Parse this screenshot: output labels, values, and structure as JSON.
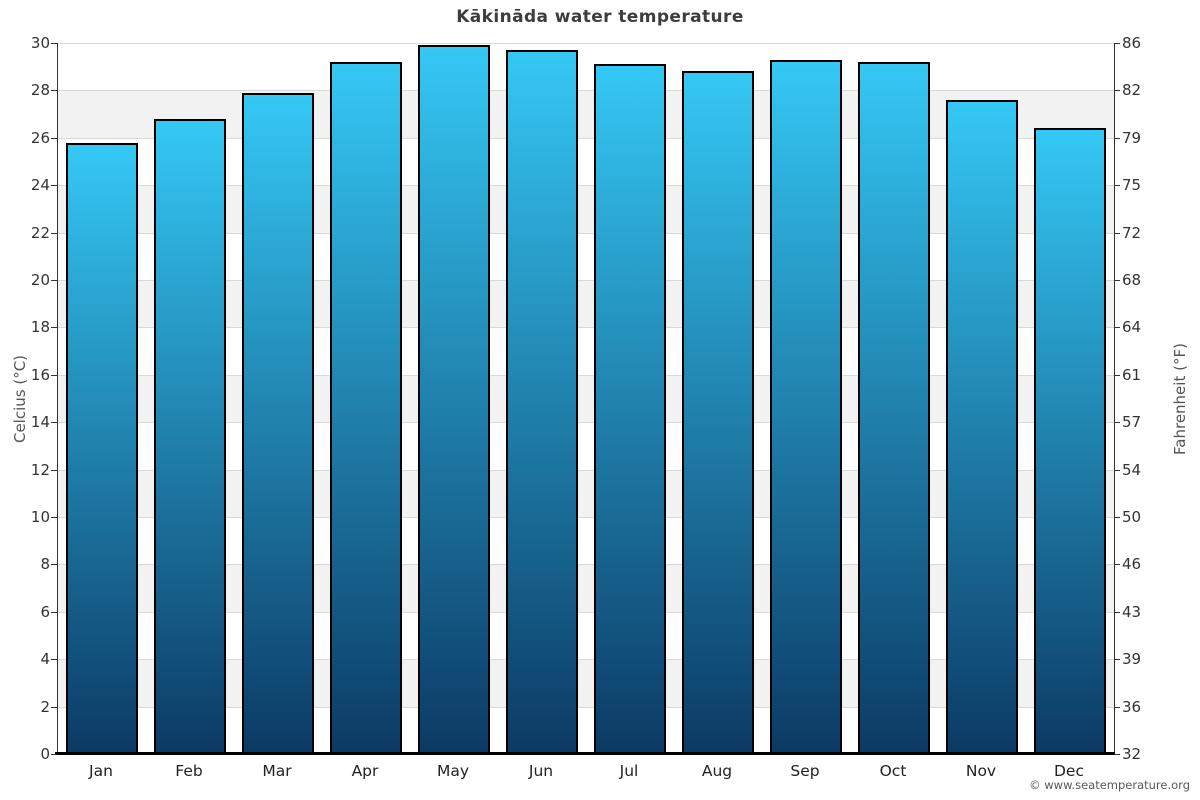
{
  "title": "Kākināda water temperature",
  "footer": "© www.seatemperature.org",
  "chart_data": {
    "type": "bar",
    "title": "Kākināda water temperature",
    "categories": [
      "Jan",
      "Feb",
      "Mar",
      "Apr",
      "May",
      "Jun",
      "Jul",
      "Aug",
      "Sep",
      "Oct",
      "Nov",
      "Dec"
    ],
    "values": [
      25.8,
      26.8,
      27.9,
      29.2,
      29.9,
      29.7,
      29.1,
      28.8,
      29.3,
      29.2,
      27.6,
      26.4
    ],
    "unit": "°C",
    "ylabel_left": "Celcius (°C)",
    "ylabel_right": "Fahrenheit (°F)",
    "ylim": [
      0,
      30
    ],
    "celsius_ticks": [
      30,
      28,
      26,
      24,
      22,
      20,
      18,
      16,
      14,
      12,
      10,
      8,
      6,
      4,
      2,
      0
    ],
    "fahrenheit_ticks": [
      86,
      82,
      79,
      75,
      72,
      68,
      64,
      61,
      57,
      54,
      50,
      46,
      43,
      39,
      36,
      32
    ],
    "grid": true,
    "stripes": "alternating horizontal bands every 2°C, white then gray from top",
    "legend": "none",
    "colors": {
      "bar_top": "#35c8f5",
      "bar_bottom": "#0b3a64",
      "bar_border": "#000000",
      "stripe": "#f2f2f2",
      "gridline": "#d9d9d9",
      "axis_line": "#333333",
      "title_color": "#3d3d3d",
      "tick_label_color": "#333333",
      "axis_title_color": "#555555",
      "footer_color": "#58595b"
    }
  }
}
